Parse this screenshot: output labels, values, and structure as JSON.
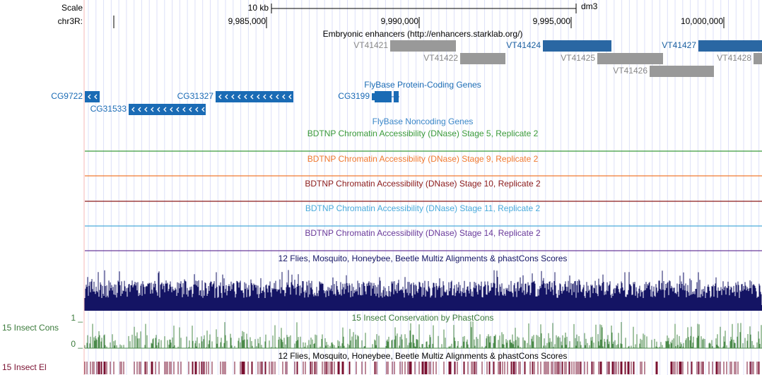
{
  "ruler": {
    "scale_label": "Scale",
    "scale_size": "10 kb",
    "assembly": "dm3",
    "chrom": "chr3R:",
    "positions": [
      "9,985,000",
      "9,990,000",
      "9,995,000",
      "10,000,000"
    ]
  },
  "enhancers": {
    "title": "Embryonic enhancers (http://enhancers.starklab.org/)",
    "items": [
      "VT41421",
      "VT41422",
      "VT41424",
      "VT41425",
      "VT41426",
      "VT41427",
      "VT41428"
    ]
  },
  "coding_genes": {
    "title": "FlyBase Protein-Coding Genes",
    "items": [
      "CG9722",
      "CG31327",
      "CG3199",
      "CG31533"
    ]
  },
  "noncoding_genes": {
    "title": "FlyBase Noncoding Genes"
  },
  "dnase_tracks": [
    "BDTNP Chromatin Accessibility (DNase) Stage 5, Replicate 2",
    "BDTNP Chromatin Accessibility (DNase) Stage 9, Replicate 2",
    "BDTNP Chromatin Accessibility (DNase) Stage 10, Replicate 2",
    "BDTNP Chromatin Accessibility (DNase) Stage 11, Replicate 2",
    "BDTNP Chromatin Accessibility (DNase) Stage 14, Replicate 2"
  ],
  "multiz": {
    "title": "12 Flies, Mosquito, Honeybee, Beetle Multiz Alignments & phastCons Scores"
  },
  "phastcons": {
    "title": "15 Insect Conservation by PhastCons",
    "side_label": "15 Insect Cons",
    "max_label": "1 _",
    "min_label": "0 _"
  },
  "elements": {
    "title": "12 Flies, Mosquito, Honeybee, Beetle Multiz Alignments & phastCons Scores",
    "side_label": "15 Insect El"
  }
}
